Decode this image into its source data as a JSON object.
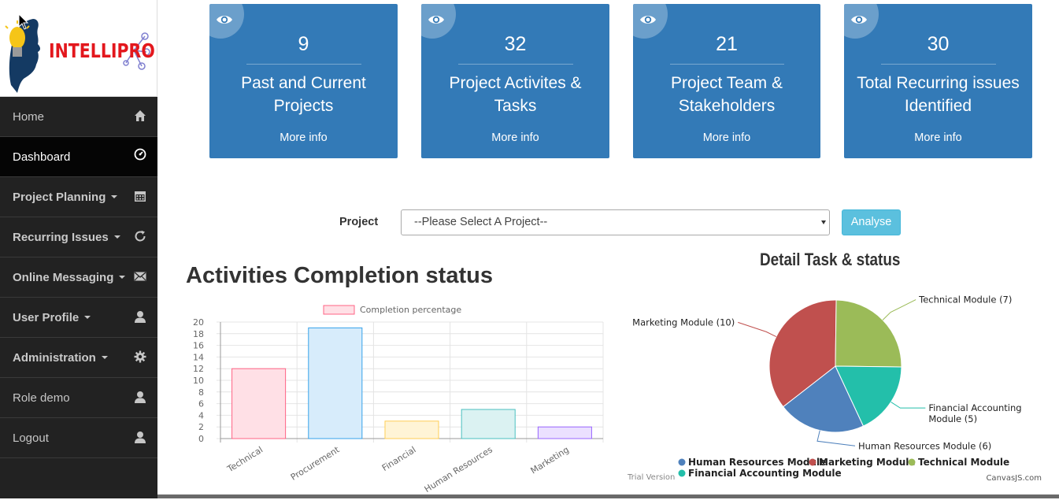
{
  "brand": {
    "name": "INTELLIPRO"
  },
  "sidebar": {
    "items": [
      {
        "label": "Home",
        "icon": "home-icon"
      },
      {
        "label": "Dashboard",
        "icon": "dashboard-icon"
      },
      {
        "label": "Project Planning",
        "icon": "calendar-icon"
      },
      {
        "label": "Recurring Issues",
        "icon": "refresh-icon"
      },
      {
        "label": "Online Messaging",
        "icon": "envelope-icon"
      },
      {
        "label": "User Profile",
        "icon": "user-icon"
      },
      {
        "label": "Administration",
        "icon": "gear-icon"
      },
      {
        "label": "Role demo",
        "icon": "user-icon"
      },
      {
        "label": "Logout",
        "icon": "user-icon"
      }
    ]
  },
  "cards": [
    {
      "count": "9",
      "label": "Past and Current Projects",
      "more": "More info"
    },
    {
      "count": "32",
      "label": "Project Activites & Tasks",
      "more": "More info"
    },
    {
      "count": "21",
      "label": "Project Team & Stakeholders",
      "more": "More info"
    },
    {
      "count": "30",
      "label": "Total Recurring issues Identified",
      "more": "More info"
    }
  ],
  "project": {
    "label": "Project",
    "selected": "--Please Select A Project--",
    "analyse_label": "Analyse"
  },
  "colors": {
    "card_blue": "#337ab7",
    "sidebar_bg": "#222222",
    "analyse_btn": "#5bc0de"
  },
  "chart_data": [
    {
      "type": "bar",
      "title": "Activities Completion status",
      "legend": "Completion percentage",
      "categories": [
        "Technical",
        "Procurement",
        "Financial",
        "Human Resources",
        "Marketing"
      ],
      "values": [
        12,
        19,
        3,
        5,
        2
      ],
      "ylim": [
        0,
        20
      ],
      "yticks": [
        "0",
        "2",
        "4",
        "6",
        "8",
        "10",
        "12",
        "14",
        "16",
        "18",
        "20"
      ],
      "fill_colors": [
        "#ffe0e6",
        "#d7ecfb",
        "#fff4d6",
        "#dbf2f2",
        "#ebe0ff"
      ],
      "stroke_colors": [
        "#ff6384",
        "#36a2eb",
        "#ffce56",
        "#4bc0c0",
        "#9966ff"
      ]
    },
    {
      "type": "pie",
      "title": "Detail Task & status",
      "slices": [
        {
          "name": "Human Resources Module",
          "value": 6,
          "label": "Human Resources Module (6)",
          "color": "#4f81bc"
        },
        {
          "name": "Marketing Module",
          "value": 10,
          "label": "Marketing Module (10)",
          "color": "#c0504e"
        },
        {
          "name": "Technical Module",
          "value": 7,
          "label": "Technical Module (7)",
          "color": "#9bbb58"
        },
        {
          "name": "Financial Accounting Module",
          "value": 5,
          "label_lines": [
            "Financial Accounting",
            "Module (5)"
          ],
          "color": "#23bfaa"
        }
      ],
      "legend": [
        "Human Resources Module",
        "Marketing Module",
        "Technical Module",
        "Financial Accounting Module"
      ],
      "watermark_left": "Trial Version",
      "watermark_right": "CanvasJS.com"
    }
  ]
}
